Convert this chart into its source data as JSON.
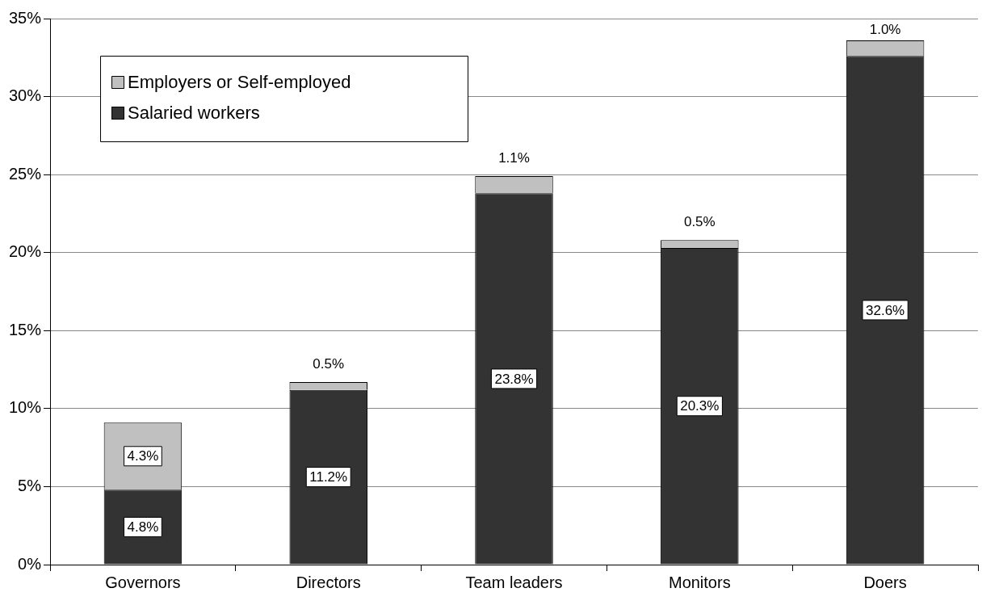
{
  "chart_data": {
    "type": "bar",
    "stacked": true,
    "categories": [
      "Governors",
      "Directors",
      "Team leaders",
      "Monitors",
      "Doers"
    ],
    "series": [
      {
        "name": "Salaried workers",
        "color": "#333333",
        "values": [
          4.8,
          11.2,
          23.8,
          20.3,
          32.6
        ],
        "value_labels": [
          "4.8%",
          "11.2%",
          "23.8%",
          "20.3%",
          "32.6%"
        ]
      },
      {
        "name": "Employers or Self-employed",
        "color": "#c0c0c0",
        "values": [
          4.3,
          0.5,
          1.1,
          0.5,
          1.0
        ],
        "value_labels": [
          "4.3%",
          "0.5%",
          "1.1%",
          "0.5%",
          "1.0%"
        ]
      }
    ],
    "ylim": [
      0,
      35
    ],
    "yticks": [
      {
        "value": 0,
        "label": "0%"
      },
      {
        "value": 5,
        "label": "5%"
      },
      {
        "value": 10,
        "label": "10%"
      },
      {
        "value": 15,
        "label": "15%"
      },
      {
        "value": 20,
        "label": "20%"
      },
      {
        "value": 25,
        "label": "25%"
      },
      {
        "value": 30,
        "label": "30%"
      },
      {
        "value": 35,
        "label": "35%"
      }
    ],
    "grid": "y",
    "legend": "top left"
  }
}
